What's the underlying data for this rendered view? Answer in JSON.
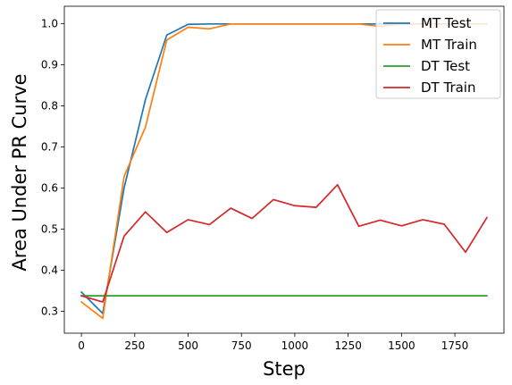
{
  "chart_data": {
    "type": "line",
    "title": "",
    "xlabel": "Step",
    "ylabel": "Area Under PR Curve",
    "xlim": [
      -80,
      1980
    ],
    "ylim": [
      0.247,
      1.042
    ],
    "xticks": [
      0,
      250,
      500,
      750,
      1000,
      1250,
      1500,
      1750
    ],
    "yticks": [
      0.3,
      0.4,
      0.5,
      0.6,
      0.7,
      0.8,
      0.9,
      1.0
    ],
    "xtick_labels": [
      "0",
      "250",
      "500",
      "750",
      "1000",
      "1250",
      "1500",
      "1750"
    ],
    "ytick_labels": [
      "0.3",
      "0.4",
      "0.5",
      "0.6",
      "0.7",
      "0.8",
      "0.9",
      "1.0"
    ],
    "grid": false,
    "legend_position": "upper-right",
    "x": [
      0,
      100,
      200,
      300,
      400,
      500,
      600,
      700,
      800,
      900,
      1000,
      1100,
      1200,
      1300,
      1400,
      1500,
      1600,
      1700,
      1800,
      1900
    ],
    "series": [
      {
        "name": "MT Test",
        "color": "#1f77b4",
        "values": [
          0.347,
          0.295,
          0.6,
          0.815,
          0.972,
          0.998,
          0.999,
          0.999,
          0.999,
          0.999,
          0.999,
          0.999,
          0.999,
          0.999,
          0.999,
          0.999,
          0.999,
          0.999,
          0.999,
          0.999
        ]
      },
      {
        "name": "MT Train",
        "color": "#ff7f0e",
        "values": [
          0.323,
          0.283,
          0.628,
          0.748,
          0.96,
          0.991,
          0.987,
          0.999,
          0.999,
          0.999,
          0.999,
          0.999,
          0.999,
          0.999,
          0.993,
          0.999,
          0.999,
          0.999,
          0.999,
          0.999
        ]
      },
      {
        "name": "DT Test",
        "color": "#2ca02c",
        "values": [
          0.338,
          0.338,
          0.338,
          0.338,
          0.338,
          0.338,
          0.338,
          0.338,
          0.338,
          0.338,
          0.338,
          0.338,
          0.338,
          0.338,
          0.338,
          0.338,
          0.338,
          0.338,
          0.338,
          0.338
        ]
      },
      {
        "name": "DT Train",
        "color": "#d62728",
        "values": [
          0.338,
          0.323,
          0.483,
          0.542,
          0.492,
          0.523,
          0.511,
          0.551,
          0.526,
          0.572,
          0.557,
          0.553,
          0.608,
          0.507,
          0.522,
          0.508,
          0.523,
          0.512,
          0.444,
          0.528
        ]
      }
    ]
  }
}
